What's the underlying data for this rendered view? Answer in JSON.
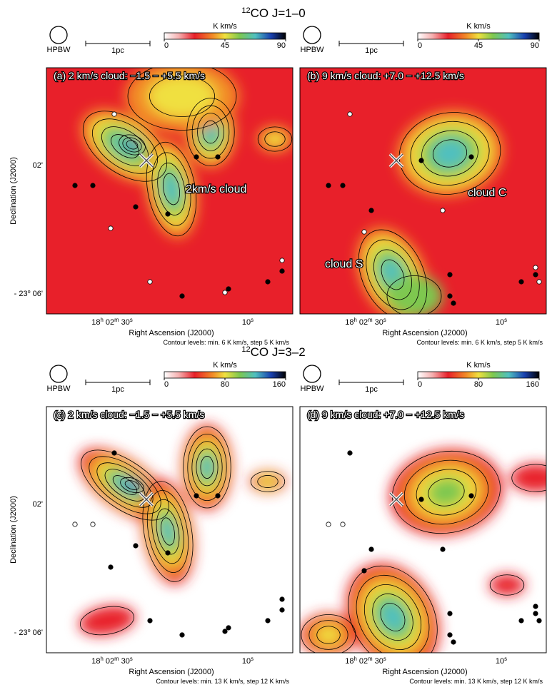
{
  "sections": [
    {
      "sup": "12",
      "title": "CO J=1–0"
    },
    {
      "sup": "12",
      "title": "CO J=3–2"
    }
  ],
  "panels": [
    {
      "hpbw": "HPBW",
      "scale": "1pc",
      "unit": "K km/s",
      "cbar_ticks": [
        0,
        45,
        90
      ],
      "label": "(a) 2 km/s cloud: −1.5 − +5.5 km/s",
      "annotations": [
        "2km/s cloud"
      ],
      "contours": "Contour levels: min. 6 K km/s,  step 5 K km/s"
    },
    {
      "hpbw": "HPBW",
      "scale": "1pc",
      "unit": "K km/s",
      "cbar_ticks": [
        0,
        45,
        90
      ],
      "label": "(b) 9 km/s cloud: +7.0 − +12.5 km/s",
      "annotations": [
        "cloud C",
        "cloud S"
      ],
      "contours": "Contour levels: min. 6 K km/s,  step 5 K km/s"
    },
    {
      "hpbw": "HPBW",
      "scale": "1pc",
      "unit": "K km/s",
      "cbar_ticks": [
        0,
        80,
        160
      ],
      "label": "(c) 2 km/s cloud: −1.5 − +5.5 km/s",
      "annotations": [],
      "contours": "Contour levels: min. 13 K km/s,  step 12 K km/s"
    },
    {
      "hpbw": "HPBW",
      "scale": "1pc",
      "unit": "K km/s",
      "cbar_ticks": [
        0,
        80,
        160
      ],
      "label": "(d) 9 km/s cloud: +7.0 − +12.5 km/s",
      "annotations": [],
      "contours": "Contour levels: min. 13 K km/s,  step 12 K km/s"
    }
  ],
  "axes": {
    "ylabel": "Declination (J2000)",
    "xlabel": "Right Ascension (J2000)",
    "ra_tick1": [
      "18",
      "h",
      " 02",
      "m",
      " 30",
      "s"
    ],
    "ra_tick2": [
      "10",
      "s"
    ],
    "dec_tick1": [
      "02'"
    ],
    "dec_tick2": [
      "- 23",
      "o",
      " 06'"
    ]
  }
}
